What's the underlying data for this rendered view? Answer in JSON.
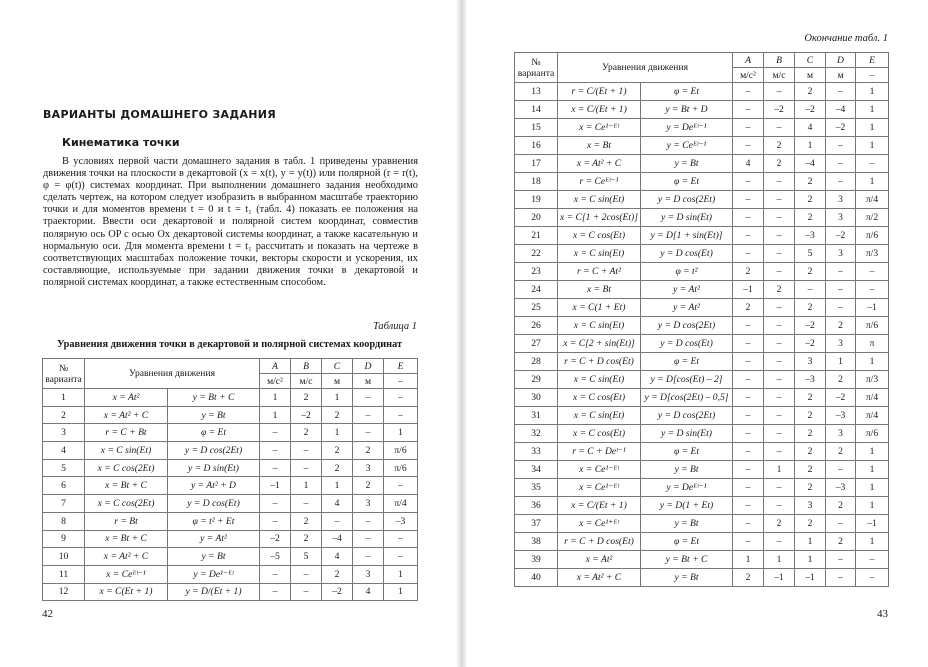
{
  "left_page": {
    "heading": "ВАРИАНТЫ ДОМАШНЕГО ЗАДАНИЯ",
    "subheading": "Кинематика точки",
    "paragraph": "В условиях первой части домашнего задания в табл. 1 приведены уравнения движения точки на плоскости в декартовой (x = x(t),  y = y(t)) или полярной (r = r(t),  φ = φ(t)) системах координат. При выполнении домашнего задания необходимо сделать чертеж, на котором следует изобразить в выбранном масштабе траекторию точки и для моментов времени t = 0 и t = t₁ (табл. 4) показать ее положения на траектории. Ввести оси декартовой и полярной систем координат, совместив полярную ось OP с осью Ox декартовой системы координат, а также касательную и нормальную оси. Для момента времени t = t₁ рассчитать и показать на чертеже в соответствующих масштабах положение точки, векторы скорости и ускорения, их составляющие, используемые при задании движения точки в декартовой и полярной системах координат, а также естественным способом.",
    "table_label": "Таблица 1",
    "table_title": "Уравнения движения точки в декартовой и полярной системах координат",
    "page_number": "42"
  },
  "right_page": {
    "table_label": "Окончание табл. 1",
    "page_number": "43"
  },
  "table_header": {
    "variant": "№ варианта",
    "equations": "Уравнения движения",
    "params": [
      "A",
      "B",
      "C",
      "D",
      "E"
    ],
    "units": [
      "м/с²",
      "м/с",
      "м",
      "м",
      "–"
    ]
  },
  "rows_left": [
    [
      "1",
      "x = At²",
      "y = Bt + C",
      "1",
      "2",
      "1",
      "–",
      "–"
    ],
    [
      "2",
      "x = At² + C",
      "y = Bt",
      "1",
      "–2",
      "2",
      "–",
      "–"
    ],
    [
      "3",
      "r = C + Bt",
      "φ = Et",
      "–",
      "2",
      "1",
      "–",
      "1"
    ],
    [
      "4",
      "x = C sin(Et)",
      "y = D cos(2Et)",
      "–",
      "–",
      "2",
      "2",
      "π/6"
    ],
    [
      "5",
      "x = C cos(2Et)",
      "y = D sin(Et)",
      "–",
      "–",
      "2",
      "3",
      "π/6"
    ],
    [
      "6",
      "x = Bt + C",
      "y = At² + D",
      "–1",
      "1",
      "1",
      "2",
      "–"
    ],
    [
      "7",
      "x = C cos(2Et)",
      "y = D cos(Et)",
      "–",
      "–",
      "4",
      "3",
      "π/4"
    ],
    [
      "8",
      "r = Bt",
      "φ = t² + Et",
      "–",
      "2",
      "–",
      "–",
      "–3"
    ],
    [
      "9",
      "x = Bt + C",
      "y = At²",
      "–2",
      "2",
      "–4",
      "–",
      "–"
    ],
    [
      "10",
      "x = At² + C",
      "y = Bt",
      "–5",
      "5",
      "4",
      "–",
      "–"
    ],
    [
      "11",
      "x = Ceᴱᵗ⁻¹",
      "y = De¹⁻ᴱᵗ",
      "–",
      "–",
      "2",
      "3",
      "1"
    ],
    [
      "12",
      "x = C(Et + 1)",
      "y = D/(Et + 1)",
      "–",
      "–",
      "–2",
      "4",
      "1"
    ]
  ],
  "rows_right": [
    [
      "13",
      "r = C/(Et + 1)",
      "φ = Et",
      "–",
      "–",
      "2",
      "–",
      "1"
    ],
    [
      "14",
      "x = C/(Et + 1)",
      "y = Bt + D",
      "–",
      "–2",
      "–2",
      "–4",
      "1"
    ],
    [
      "15",
      "x = Ce¹⁻ᴱᵗ",
      "y = Deᴱᵗ⁻¹",
      "–",
      "–",
      "4",
      "–2",
      "1"
    ],
    [
      "16",
      "x = Bt",
      "y = Ceᴱᵗ⁻¹",
      "–",
      "2",
      "1",
      "–",
      "1"
    ],
    [
      "17",
      "x = At² + C",
      "y = Bt",
      "4",
      "2",
      "–4",
      "–",
      "–"
    ],
    [
      "18",
      "r = Ceᴱᵗ⁻¹",
      "φ = Et",
      "–",
      "–",
      "2",
      "–",
      "1"
    ],
    [
      "19",
      "x = C sin(Et)",
      "y = D cos(2Et)",
      "–",
      "–",
      "2",
      "3",
      "π/4"
    ],
    [
      "20",
      "x = C[1 + 2cos(Et)]",
      "y = D sin(Et)",
      "–",
      "–",
      "2",
      "3",
      "π/2"
    ],
    [
      "21",
      "x = C cos(Et)",
      "y = D[1 + sin(Et)]",
      "–",
      "–",
      "–3",
      "–2",
      "π/6"
    ],
    [
      "22",
      "x = C sin(Et)",
      "y = D cos(Et)",
      "–",
      "–",
      "5",
      "3",
      "π/3"
    ],
    [
      "23",
      "r = C + At²",
      "φ = t²",
      "2",
      "–",
      "2",
      "–",
      "–"
    ],
    [
      "24",
      "x = Bt",
      "y = At²",
      "–1",
      "2",
      "–",
      "–",
      "–"
    ],
    [
      "25",
      "x = C(1 + Et)",
      "y = At²",
      "2",
      "–",
      "2",
      "–",
      "–1"
    ],
    [
      "26",
      "x = C sin(Et)",
      "y = D cos(2Et)",
      "–",
      "–",
      "–2",
      "2",
      "π/6"
    ],
    [
      "27",
      "x = C[2 + sin(Et)]",
      "y = D cos(Et)",
      "–",
      "–",
      "–2",
      "3",
      "π"
    ],
    [
      "28",
      "r = C + D cos(Et)",
      "φ = Et",
      "–",
      "–",
      "3",
      "1",
      "1"
    ],
    [
      "29",
      "x = C sin(Et)",
      "y = D[cos(Et) – 2]",
      "–",
      "–",
      "–3",
      "2",
      "π/3"
    ],
    [
      "30",
      "x = C cos(Et)",
      "y = D[cos(2Et) – 0,5]",
      "–",
      "–",
      "2",
      "–2",
      "π/4"
    ],
    [
      "31",
      "x = C sin(Et)",
      "y = D cos(2Et)",
      "–",
      "–",
      "2",
      "–3",
      "π/4"
    ],
    [
      "32",
      "x = C cos(Et)",
      "y = D sin(Et)",
      "–",
      "–",
      "2",
      "3",
      "π/6"
    ],
    [
      "33",
      "r = C + Deᵗ⁻¹",
      "φ = Et",
      "–",
      "–",
      "2",
      "2",
      "1"
    ],
    [
      "34",
      "x = Ce¹⁻ᴱᵗ",
      "y = Bt",
      "–",
      "1",
      "2",
      "–",
      "1"
    ],
    [
      "35",
      "x = Ce¹⁻ᴱᵗ",
      "y = Deᴱᵗ⁻¹",
      "–",
      "–",
      "2",
      "–3",
      "1"
    ],
    [
      "36",
      "x = C/(Et + 1)",
      "y = D(1 + Et)",
      "–",
      "–",
      "3",
      "2",
      "1"
    ],
    [
      "37",
      "x = Ce¹⁺ᴱᵗ",
      "y = Bt",
      "–",
      "2",
      "2",
      "–",
      "–1"
    ],
    [
      "38",
      "r = C + D cos(Et)",
      "φ = Et",
      "–",
      "–",
      "1",
      "2",
      "1"
    ],
    [
      "39",
      "x = At²",
      "y = Bt + C",
      "1",
      "1",
      "1",
      "–",
      "–"
    ],
    [
      "40",
      "x = At² + C",
      "y = Bt",
      "2",
      "–1",
      "–1",
      "–",
      "–"
    ]
  ]
}
